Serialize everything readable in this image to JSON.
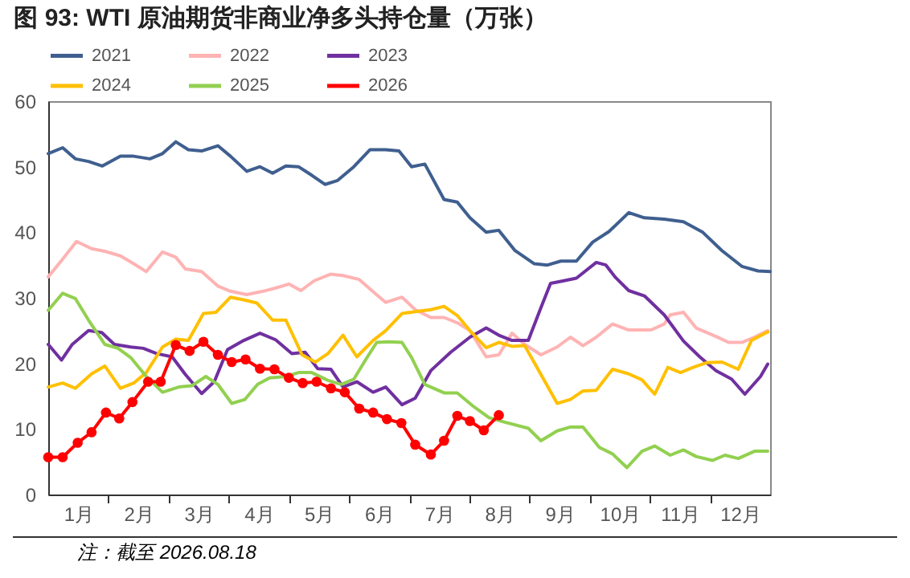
{
  "chart_data": {
    "type": "line",
    "title": "图 93:  WTI 原油期货非商业净多头持仓量（万张）",
    "annotations": [
      "注：截至 2026.08.18"
    ],
    "xlim": [
      0,
      12
    ],
    "xticks": [
      {
        "value": 0.5,
        "label": "1月"
      },
      {
        "value": 1,
        "label": null
      },
      {
        "value": 1.5,
        "label": "2月"
      },
      {
        "value": 2,
        "label": null
      },
      {
        "value": 2.5,
        "label": "3月"
      },
      {
        "value": 3,
        "label": null
      },
      {
        "value": 3.5,
        "label": "4月"
      },
      {
        "value": 4,
        "label": null
      },
      {
        "value": 4.5,
        "label": "5月"
      },
      {
        "value": 5,
        "label": null
      },
      {
        "value": 5.5,
        "label": "6月"
      },
      {
        "value": 6,
        "label": null
      },
      {
        "value": 6.5,
        "label": "7月"
      },
      {
        "value": 7,
        "label": null
      },
      {
        "value": 7.5,
        "label": "8月"
      },
      {
        "value": 8,
        "label": null
      },
      {
        "value": 8.5,
        "label": "9月"
      },
      {
        "value": 9,
        "label": null
      },
      {
        "value": 9.5,
        "label": "10月"
      },
      {
        "value": 10,
        "label": null
      },
      {
        "value": 10.5,
        "label": "11月"
      },
      {
        "value": 11,
        "label": null
      },
      {
        "value": 11.5,
        "label": "12月"
      }
    ],
    "ylim": [
      0,
      60
    ],
    "yticks": [
      0,
      10,
      20,
      30,
      40,
      50,
      60
    ],
    "legend": "top",
    "grid": false,
    "series": [
      {
        "name": "2021",
        "color": "#3f5f8f",
        "x": [
          0,
          0.24,
          0.45,
          0.67,
          0.9,
          1.2,
          1.42,
          1.69,
          1.9,
          2.12,
          2.33,
          2.55,
          2.82,
          3.03,
          3.3,
          3.52,
          3.73,
          3.95,
          4.16,
          4.38,
          4.6,
          4.81,
          5.08,
          5.35,
          5.61,
          5.83,
          6.04,
          6.26,
          6.58,
          6.8,
          7.01,
          7.28,
          7.49,
          7.76,
          8.08,
          8.3,
          8.52,
          8.78,
          9.05,
          9.32,
          9.65,
          9.91,
          10.24,
          10.56,
          10.88,
          11.2,
          11.53,
          11.8,
          12
        ],
        "values": [
          52,
          52.9,
          51.2,
          50.8,
          50.1,
          51.6,
          51.6,
          51.2,
          52,
          53.8,
          52.6,
          52.4,
          53.2,
          51.6,
          49.3,
          50,
          49,
          50.1,
          50,
          48.7,
          47.3,
          47.9,
          50,
          52.6,
          52.6,
          52.4,
          50,
          50.4,
          45,
          44.6,
          42.2,
          40,
          40.3,
          37.2,
          35.2,
          35,
          35.6,
          35.6,
          38.5,
          40.1,
          43,
          42.2,
          42,
          41.6,
          40,
          37.2,
          34.8,
          34.1,
          34
        ]
      },
      {
        "name": "2022",
        "color": "#ffb3b3",
        "x": [
          0,
          0.24,
          0.47,
          0.72,
          0.94,
          1.2,
          1.42,
          1.63,
          1.9,
          2.12,
          2.28,
          2.55,
          2.82,
          3.03,
          3.3,
          3.57,
          3.78,
          4,
          4.2,
          4.42,
          4.69,
          4.9,
          5.17,
          5.38,
          5.61,
          5.88,
          6.1,
          6.36,
          6.58,
          6.8,
          7.01,
          7.28,
          7.49,
          7.71,
          7.92,
          8.19,
          8.46,
          8.68,
          8.89,
          9.11,
          9.38,
          9.65,
          10.02,
          10.24,
          10.34,
          10.56,
          10.77,
          11.1,
          11.31,
          11.53,
          11.74,
          11.96
        ],
        "values": [
          33.2,
          35.9,
          38.6,
          37.5,
          37.1,
          36.4,
          35.2,
          34,
          37,
          36.2,
          34.4,
          34,
          31.8,
          31,
          30.5,
          31,
          31.5,
          32.1,
          31.1,
          32.6,
          33.6,
          33.4,
          32.8,
          31.1,
          29.3,
          30.1,
          28.2,
          27,
          27,
          26.2,
          25,
          21,
          21.3,
          24.6,
          22.9,
          21.3,
          22.5,
          24,
          22.7,
          24,
          26,
          25.1,
          25.1,
          26,
          27.4,
          27.8,
          25.4,
          24.1,
          23.2,
          23.2,
          24,
          25
        ]
      },
      {
        "name": "2023",
        "color": "#7030a0",
        "x": [
          0,
          0.22,
          0.4,
          0.67,
          0.89,
          1.1,
          1.37,
          1.58,
          1.8,
          2.06,
          2.28,
          2.55,
          2.76,
          2.98,
          3.25,
          3.52,
          3.78,
          4.05,
          4.27,
          4.48,
          4.7,
          4.9,
          5.13,
          5.4,
          5.61,
          5.88,
          6.1,
          6.36,
          6.69,
          7.01,
          7.28,
          7.49,
          7.71,
          7.98,
          8.19,
          8.35,
          8.57,
          8.78,
          9.11,
          9.27,
          9.43,
          9.65,
          9.91,
          10.24,
          10.56,
          10.83,
          11.1,
          11.36,
          11.58,
          11.84,
          11.96
        ],
        "values": [
          22.9,
          20.5,
          22.9,
          25,
          24.7,
          22.9,
          22.5,
          22.3,
          21.5,
          21,
          18.3,
          15.4,
          17.2,
          22.1,
          23.5,
          24.6,
          23.6,
          21.5,
          21.7,
          19.2,
          19.1,
          16.4,
          17.2,
          15.6,
          16.4,
          13.7,
          14.7,
          18.9,
          21.7,
          24,
          25.4,
          24.3,
          23.5,
          23.5,
          28.5,
          32.2,
          32.6,
          33,
          35.4,
          35,
          33.1,
          31.1,
          30.3,
          27.4,
          23.4,
          21,
          18.9,
          17.6,
          15.3,
          18,
          19.9
        ]
      },
      {
        "name": "2024",
        "color": "#ffc000",
        "x": [
          0,
          0.24,
          0.45,
          0.72,
          0.94,
          1.2,
          1.42,
          1.63,
          1.9,
          2.12,
          2.33,
          2.58,
          2.79,
          3.03,
          3.25,
          3.47,
          3.73,
          3.95,
          4.22,
          4.44,
          4.65,
          4.9,
          5.13,
          5.4,
          5.61,
          5.88,
          6.1,
          6.36,
          6.58,
          6.8,
          7.01,
          7.28,
          7.49,
          7.71,
          7.92,
          8.08,
          8.46,
          8.68,
          8.89,
          9.11,
          9.38,
          9.65,
          9.87,
          10.08,
          10.3,
          10.51,
          10.72,
          10.94,
          11.2,
          11.47,
          11.69,
          11.96
        ],
        "values": [
          16.4,
          17,
          16.2,
          18.4,
          19.6,
          16.2,
          17,
          18.6,
          22.5,
          23.7,
          23.5,
          27.6,
          27.8,
          30.1,
          29.7,
          29.2,
          26.6,
          26.6,
          21.3,
          20.2,
          21.5,
          24.3,
          21,
          23.5,
          25,
          27.6,
          27.9,
          28.2,
          28.7,
          27.3,
          25,
          22.4,
          23.2,
          22.6,
          22.7,
          20.1,
          13.9,
          14.5,
          15.8,
          15.9,
          19.1,
          18.4,
          17.5,
          15.3,
          19.4,
          18.6,
          19.4,
          20.1,
          20.2,
          19.1,
          23.5,
          24.8
        ]
      },
      {
        "name": "2025",
        "color": "#92d050",
        "x": [
          0,
          0.24,
          0.45,
          0.67,
          0.94,
          1.16,
          1.37,
          1.63,
          1.9,
          2.17,
          2.39,
          2.62,
          2.82,
          3.05,
          3.27,
          3.48,
          3.68,
          3.95,
          4.16,
          4.38,
          4.65,
          4.87,
          5.08,
          5.3,
          5.46,
          5.66,
          5.88,
          6.04,
          6.26,
          6.58,
          6.8,
          7.06,
          7.33,
          7.6,
          7.98,
          8.19,
          8.46,
          8.68,
          8.89,
          9.16,
          9.38,
          9.62,
          9.87,
          10.08,
          10.34,
          10.56,
          10.77,
          11.04,
          11.25,
          11.47,
          11.74,
          11.96
        ],
        "values": [
          28.1,
          30.7,
          29.9,
          26.6,
          22.9,
          22.3,
          20.9,
          18,
          15.6,
          16.4,
          16.6,
          18,
          16.8,
          13.9,
          14.5,
          16.8,
          17.8,
          18,
          18.6,
          18.6,
          17.4,
          16.8,
          17.6,
          20.9,
          23.2,
          23.3,
          23.2,
          20.9,
          16.8,
          15.5,
          15.5,
          13.5,
          11.7,
          11,
          10.1,
          8.2,
          9.7,
          10.3,
          10.3,
          7.2,
          6.2,
          4.1,
          6.6,
          7.4,
          6,
          6.8,
          5.8,
          5.2,
          6,
          5.5,
          6.6,
          6.6
        ]
      },
      {
        "name": "2026",
        "color": "#ff0000",
        "marker": "circle",
        "x": [
          0,
          0.24,
          0.49,
          0.72,
          0.96,
          1.18,
          1.4,
          1.66,
          1.87,
          2.12,
          2.35,
          2.58,
          2.82,
          3.05,
          3.28,
          3.52,
          3.76,
          4,
          4.23,
          4.46,
          4.7,
          4.93,
          5.17,
          5.4,
          5.63,
          5.87,
          6.1,
          6.36,
          6.58,
          6.8,
          7.01,
          7.24,
          7.49
        ],
        "values": [
          5.7,
          5.7,
          7.9,
          9.5,
          12.5,
          11.6,
          14.1,
          17.2,
          17.2,
          22.8,
          21.9,
          23.3,
          21.3,
          20.2,
          20.6,
          19.2,
          19.1,
          17.8,
          17,
          17.2,
          16.2,
          15.6,
          13.1,
          12.5,
          11.5,
          10.9,
          7.6,
          6.1,
          8.2,
          12,
          11.2,
          9.8,
          12.1
        ]
      }
    ]
  }
}
